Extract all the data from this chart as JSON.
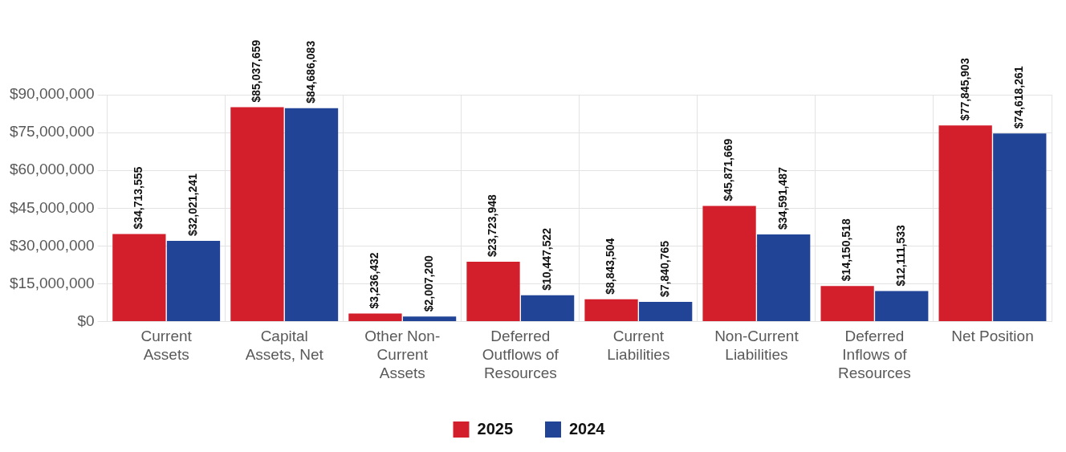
{
  "chart_data": {
    "type": "bar",
    "categories": [
      "Current Assets",
      "Capital Assets, Net",
      "Other Non-Current Assets",
      "Deferred Outflows of Resources",
      "Current Liabilities",
      "Non-Current Liabilities",
      "Deferred Inflows of Resources",
      "Net Position"
    ],
    "series": [
      {
        "name": "2025",
        "color": "#d31f2b",
        "values": [
          34713555,
          85037659,
          3236432,
          23723948,
          8843504,
          45871669,
          14150518,
          77845903
        ],
        "value_labels": [
          "$34,713,555",
          "$85,037,659",
          "$3,236,432",
          "$23,723,948",
          "$8,843,504",
          "$45,871,669",
          "$14,150,518",
          "$77,845,903"
        ]
      },
      {
        "name": "2024",
        "color": "#224497",
        "values": [
          32021241,
          84686083,
          2007200,
          10447522,
          7840765,
          34591487,
          12111533,
          74618261
        ],
        "value_labels": [
          "$32,021,241",
          "$84,686,083",
          "$2,007,200",
          "$10,447,522",
          "$7,840,765",
          "$34,591,487",
          "$12,111,533",
          "$74,618,261"
        ]
      }
    ],
    "ylim": [
      0,
      90000000
    ],
    "yticks": [
      {
        "value": 0,
        "label": "$0"
      },
      {
        "value": 15000000,
        "label": "$15,000,000"
      },
      {
        "value": 30000000,
        "label": "$30,000,000"
      },
      {
        "value": 45000000,
        "label": "$45,000,000"
      },
      {
        "value": 60000000,
        "label": "$60,000,000"
      },
      {
        "value": 75000000,
        "label": "$75,000,000"
      },
      {
        "value": 90000000,
        "label": "$90,000,000"
      }
    ],
    "grid": true,
    "legend": "bottom"
  }
}
